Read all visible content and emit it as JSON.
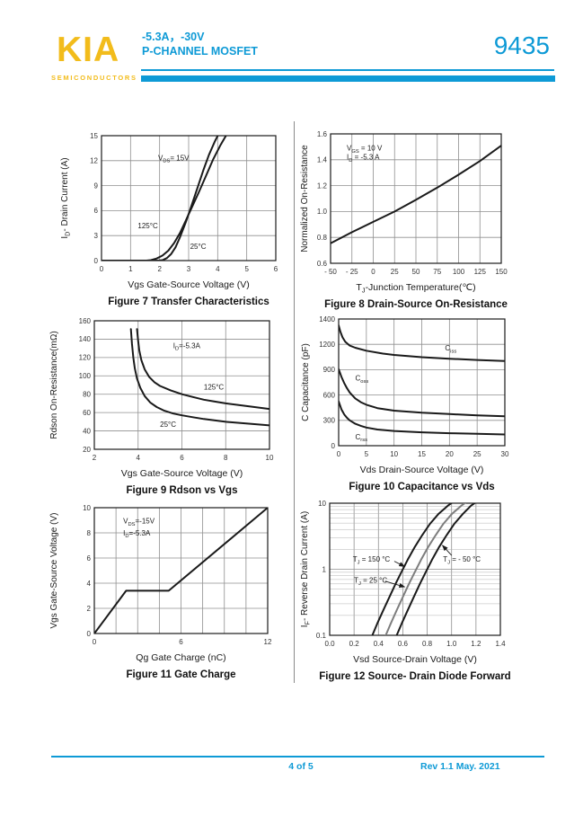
{
  "colors": {
    "accent": "#0e9ad6",
    "logo_yellow": "#f2bc1b",
    "chart_ink": "#1a1a1a",
    "grid": "#8f8f8f",
    "grid_minor": "#b3b3b3"
  },
  "header": {
    "logo_text": "KIA",
    "logo_subtext": "SEMICONDUCTORS",
    "rating_line": "-5.3A，-30V",
    "device_type": "P-CHANNEL MOSFET",
    "part_number": "9435"
  },
  "footer": {
    "page_indicator": "4 of 5",
    "revision": "Rev 1.1 May. 2021"
  },
  "chart_data": [
    {
      "name": "figure-7",
      "type": "line",
      "caption": "Figure 7 Transfer Characteristics",
      "xlabel": "Vgs Gate-Source Voltage (V)",
      "ylabel": "I_{D}- Drain Current (A)",
      "x": {
        "ticks": [
          0,
          1,
          2,
          3,
          4,
          5,
          6
        ],
        "labels": [
          "0",
          "1",
          "2",
          "3",
          "4",
          "5",
          "6"
        ]
      },
      "y": {
        "ticks": [
          0,
          3,
          6,
          9,
          12,
          15
        ],
        "labels": [
          "0",
          "3",
          "6",
          "9",
          "12",
          "15"
        ]
      },
      "series": [
        {
          "name": "125°C",
          "points": [
            [
              0,
              0
            ],
            [
              1.55,
              0
            ],
            [
              1.7,
              0.05
            ],
            [
              1.9,
              0.25
            ],
            [
              2.1,
              0.6
            ],
            [
              2.3,
              1.2
            ],
            [
              2.5,
              2.1
            ],
            [
              2.7,
              3.3
            ],
            [
              2.9,
              4.8
            ],
            [
              3.1,
              6.3
            ],
            [
              3.35,
              8.2
            ],
            [
              3.6,
              10.2
            ],
            [
              3.85,
              12.2
            ],
            [
              4.1,
              13.9
            ],
            [
              4.35,
              15.4
            ],
            [
              4.5,
              16.2
            ]
          ]
        },
        {
          "name": "25°C",
          "points": [
            [
              0,
              0
            ],
            [
              1.95,
              0
            ],
            [
              2.1,
              0.05
            ],
            [
              2.25,
              0.3
            ],
            [
              2.4,
              0.8
            ],
            [
              2.55,
              1.6
            ],
            [
              2.7,
              2.8
            ],
            [
              2.9,
              4.6
            ],
            [
              3.1,
              6.6
            ],
            [
              3.3,
              8.7
            ],
            [
              3.5,
              10.8
            ],
            [
              3.7,
              12.7
            ],
            [
              3.9,
              14.3
            ],
            [
              4.12,
              15.8
            ]
          ]
        }
      ],
      "annotations": [
        {
          "text": "V_{DS}= 15V",
          "x": 1.95,
          "y": 12.35
        },
        {
          "text": "125°C",
          "x": 1.25,
          "y": 4.2
        },
        {
          "text": "25°C",
          "x": 3.05,
          "y": 1.7
        }
      ],
      "arrows": []
    },
    {
      "name": "figure-8",
      "type": "line",
      "caption": "Figure 8 Drain-Source On-Resistance",
      "xlabel": "T_{J}-Junction Temperature(℃)",
      "ylabel": "Normalized On-Resistance",
      "x": {
        "ticks": [
          -50,
          -25,
          0,
          25,
          50,
          75,
          100,
          125,
          150
        ],
        "labels": [
          "- 50",
          "- 25",
          "0",
          "25",
          "50",
          "75",
          "100",
          "125",
          "150"
        ]
      },
      "y": {
        "ticks": [
          0.6,
          0.8,
          1.0,
          1.2,
          1.4,
          1.6
        ],
        "labels": [
          "0.6",
          "0.8",
          "1.0",
          "1.2",
          "1.4",
          "1.6"
        ]
      },
      "series": [
        {
          "name": "normalized-on-resistance",
          "points": [
            [
              -50,
              0.755
            ],
            [
              -25,
              0.84
            ],
            [
              0,
              0.92
            ],
            [
              25,
              1.0
            ],
            [
              50,
              1.09
            ],
            [
              75,
              1.185
            ],
            [
              100,
              1.285
            ],
            [
              125,
              1.39
            ],
            [
              150,
              1.51
            ]
          ]
        }
      ],
      "annotations": [
        {
          "text": "V_{GS} = 10 V",
          "x": -31,
          "y": 1.49
        },
        {
          "text": "I_{D} = -5.3 A",
          "x": -31,
          "y": 1.42
        }
      ],
      "arrows": []
    },
    {
      "name": "figure-9",
      "type": "line",
      "caption": "Figure 9 Rdson vs Vgs",
      "xlabel": "Vgs Gate-Source Voltage (V)",
      "ylabel": "Rdson On-Resistance(mΩ)",
      "x": {
        "ticks": [
          2,
          4,
          6,
          8,
          10
        ],
        "labels": [
          "2",
          "4",
          "6",
          "8",
          "10"
        ]
      },
      "y": {
        "ticks": [
          20,
          40,
          60,
          80,
          100,
          120,
          140,
          160
        ],
        "labels": [
          "20",
          "40",
          "60",
          "80",
          "100",
          "120",
          "140",
          "160"
        ]
      },
      "series": [
        {
          "name": "125°C",
          "points": [
            [
              3.95,
              151
            ],
            [
              4.0,
              138
            ],
            [
              4.05,
              128
            ],
            [
              4.15,
              117
            ],
            [
              4.3,
              107
            ],
            [
              4.5,
              99
            ],
            [
              4.75,
              93
            ],
            [
              5.0,
              89
            ],
            [
              5.5,
              84
            ],
            [
              6.0,
              80
            ],
            [
              6.5,
              77
            ],
            [
              7.0,
              74
            ],
            [
              7.5,
              72
            ],
            [
              8.0,
              70
            ],
            [
              9.0,
              67
            ],
            [
              10.0,
              64
            ]
          ]
        },
        {
          "name": "25°C",
          "points": [
            [
              3.67,
              151
            ],
            [
              3.72,
              135
            ],
            [
              3.78,
              120
            ],
            [
              3.85,
              108
            ],
            [
              3.95,
              97
            ],
            [
              4.1,
              87
            ],
            [
              4.3,
              78
            ],
            [
              4.55,
              71
            ],
            [
              4.85,
              66
            ],
            [
              5.2,
              62
            ],
            [
              5.6,
              59
            ],
            [
              6.0,
              57
            ],
            [
              6.5,
              55
            ],
            [
              7.0,
              53
            ],
            [
              8.0,
              50
            ],
            [
              9.0,
              48
            ],
            [
              10.0,
              46
            ]
          ]
        }
      ],
      "annotations": [
        {
          "text": "I_{D}=-5.3A",
          "x": 5.6,
          "y": 133
        },
        {
          "text": "125°C",
          "x": 7.0,
          "y": 88
        },
        {
          "text": "25°C",
          "x": 5.0,
          "y": 47
        }
      ],
      "arrows": []
    },
    {
      "name": "figure-10",
      "type": "line",
      "caption": "Figure 10 Capacitance vs Vds",
      "xlabel": "Vds Drain-Source Voltage (V)",
      "ylabel": "C Capacitance (pF)",
      "x": {
        "ticks": [
          0,
          5,
          10,
          15,
          20,
          25,
          30
        ],
        "labels": [
          "0",
          "5",
          "10",
          "15",
          "20",
          "25",
          "30"
        ]
      },
      "y": {
        "ticks": [
          0,
          300,
          600,
          900,
          1200,
          1400
        ],
        "labels": [
          "0",
          "300",
          "600",
          "900",
          "1200",
          "1400"
        ]
      },
      "series": [
        {
          "name": "Ciss",
          "points": [
            [
              0,
              1350
            ],
            [
              0.3,
              1300
            ],
            [
              0.7,
              1255
            ],
            [
              1.2,
              1220
            ],
            [
              2,
              1185
            ],
            [
              3,
              1160
            ],
            [
              5,
              1125
            ],
            [
              8,
              1090
            ],
            [
              10,
              1075
            ],
            [
              15,
              1048
            ],
            [
              20,
              1030
            ],
            [
              25,
              1015
            ],
            [
              30,
              1003
            ]
          ]
        },
        {
          "name": "Coss",
          "points": [
            [
              0,
              905
            ],
            [
              0.5,
              815
            ],
            [
              1,
              740
            ],
            [
              1.5,
              680
            ],
            [
              2,
              630
            ],
            [
              3,
              560
            ],
            [
              4,
              515
            ],
            [
              5,
              485
            ],
            [
              7,
              445
            ],
            [
              10,
              415
            ],
            [
              15,
              390
            ],
            [
              20,
              375
            ],
            [
              25,
              360
            ],
            [
              30,
              348
            ]
          ]
        },
        {
          "name": "Crss",
          "points": [
            [
              0,
              525
            ],
            [
              0.5,
              430
            ],
            [
              1,
              370
            ],
            [
              1.5,
              330
            ],
            [
              2,
              300
            ],
            [
              3,
              260
            ],
            [
              4,
              235
            ],
            [
              5,
              215
            ],
            [
              7,
              192
            ],
            [
              10,
              175
            ],
            [
              15,
              158
            ],
            [
              20,
              148
            ],
            [
              25,
              140
            ],
            [
              30,
              133
            ]
          ]
        }
      ],
      "annotations": [
        {
          "text": "C_{iss}",
          "x": 19.2,
          "y": 1155
        },
        {
          "text": "C_{oss}",
          "x": 3.0,
          "y": 800
        },
        {
          "text": "C_{rss}",
          "x": 3.0,
          "y": 105
        }
      ],
      "arrows": []
    },
    {
      "name": "figure-11",
      "type": "line",
      "caption": "Figure 11 Gate Charge",
      "xlabel": "Qg Gate Charge (nC)",
      "ylabel": "Vgs Gate-Source Voltage (V)",
      "x": {
        "ticks": [
          0,
          1.5,
          3,
          4.5,
          6,
          7.5,
          9,
          10.5,
          12
        ],
        "labels": [
          "0",
          "",
          "",
          "",
          "6",
          "",
          "",
          "",
          "12"
        ]
      },
      "y": {
        "ticks": [
          0,
          2,
          4,
          6,
          8,
          10
        ],
        "labels": [
          "0",
          "2",
          "4",
          "6",
          "8",
          "10"
        ]
      },
      "series": [
        {
          "name": "gate-charge",
          "points": [
            [
              0,
              0
            ],
            [
              2.2,
              3.4
            ],
            [
              5.15,
              3.4
            ],
            [
              12,
              10
            ]
          ]
        }
      ],
      "annotations": [
        {
          "text": "V_{DS}=-15V",
          "x": 2.0,
          "y": 8.95
        },
        {
          "text": "I_{D}=-5.3A",
          "x": 2.0,
          "y": 8.0
        }
      ],
      "arrows": []
    },
    {
      "name": "figure-12",
      "type": "line",
      "caption": "Figure 12 Source- Drain Diode Forward",
      "xlabel": "Vsd Source-Drain Voltage (V)",
      "ylabel": "I_{F}- Reverse Drain Current (A)",
      "x": {
        "ticks": [
          0,
          0.2,
          0.4,
          0.6,
          0.8,
          1.0,
          1.2,
          1.4
        ],
        "labels": [
          "0.0",
          "0.2",
          "0.4",
          "0.6",
          "0.8",
          "1.0",
          "1.2",
          "1.4"
        ]
      },
      "y": {
        "scale": "log",
        "ticks": [
          0.1,
          1,
          10
        ],
        "labels": [
          "0.1",
          "1",
          "10"
        ]
      },
      "series": [
        {
          "name": "TJ = 150 °C",
          "points": [
            [
              0.35,
              0.1
            ],
            [
              0.39,
              0.15
            ],
            [
              0.44,
              0.24
            ],
            [
              0.49,
              0.38
            ],
            [
              0.54,
              0.6
            ],
            [
              0.59,
              0.92
            ],
            [
              0.64,
              1.4
            ],
            [
              0.7,
              2.2
            ],
            [
              0.76,
              3.3
            ],
            [
              0.82,
              4.8
            ],
            [
              0.89,
              6.8
            ],
            [
              0.97,
              9.2
            ],
            [
              1.03,
              11
            ]
          ]
        },
        {
          "name": "TJ = 25 °C",
          "color": "#7d7d7d",
          "points": [
            [
              0.46,
              0.1
            ],
            [
              0.5,
              0.15
            ],
            [
              0.55,
              0.24
            ],
            [
              0.6,
              0.38
            ],
            [
              0.65,
              0.6
            ],
            [
              0.7,
              0.92
            ],
            [
              0.75,
              1.4
            ],
            [
              0.81,
              2.2
            ],
            [
              0.87,
              3.3
            ],
            [
              0.93,
              4.8
            ],
            [
              1.0,
              6.8
            ],
            [
              1.08,
              9.2
            ],
            [
              1.14,
              11
            ]
          ]
        },
        {
          "name": "TJ = -50 °C",
          "points": [
            [
              0.55,
              0.1
            ],
            [
              0.59,
              0.15
            ],
            [
              0.64,
              0.24
            ],
            [
              0.69,
              0.38
            ],
            [
              0.74,
              0.6
            ],
            [
              0.79,
              0.92
            ],
            [
              0.84,
              1.4
            ],
            [
              0.9,
              2.2
            ],
            [
              0.96,
              3.3
            ],
            [
              1.02,
              4.8
            ],
            [
              1.09,
              6.8
            ],
            [
              1.16,
              9.2
            ],
            [
              1.22,
              11
            ]
          ]
        }
      ],
      "annotations": [
        {
          "text": "T_{J} = 150 °C",
          "x": 0.19,
          "y": 1.42
        },
        {
          "text": "T_{J} = 25 °C",
          "x": 0.2,
          "y": 0.68
        },
        {
          "text": "T_{J} = - 50 °C",
          "x": 0.93,
          "y": 1.42
        }
      ],
      "arrows": [
        {
          "x1": 0.53,
          "y1": 1.32,
          "x2": 0.615,
          "y2": 1.1
        },
        {
          "x1": 0.455,
          "y1": 0.66,
          "x2": 0.615,
          "y2": 0.54
        },
        {
          "x1": 1.0,
          "y1": 1.62,
          "x2": 0.925,
          "y2": 2.3
        }
      ]
    }
  ]
}
